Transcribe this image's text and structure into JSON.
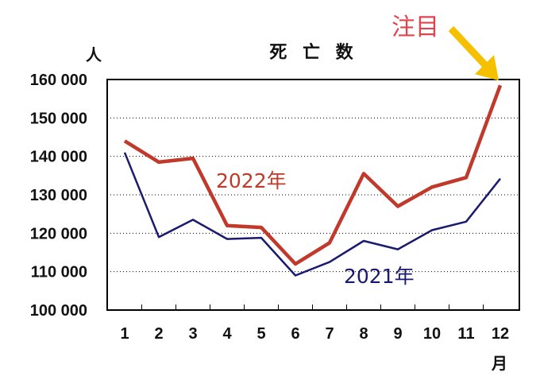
{
  "chart_data": {
    "type": "line",
    "title": "死 亡 数",
    "ylabel": "人",
    "xlabel": "月",
    "categories": [
      "1",
      "2",
      "3",
      "4",
      "5",
      "6",
      "7",
      "8",
      "9",
      "10",
      "11",
      "12"
    ],
    "ylim": [
      100000,
      160000
    ],
    "yticks": [
      100000,
      110000,
      120000,
      130000,
      140000,
      150000,
      160000
    ],
    "ytick_labels": [
      "100 000",
      "110 000",
      "120 000",
      "130 000",
      "140 000",
      "150 000",
      "160 000"
    ],
    "grid": "horizontal",
    "series": [
      {
        "name": "2022年",
        "color": "#c0392b",
        "values": [
          144000,
          138500,
          139500,
          122000,
          121500,
          112000,
          117500,
          135500,
          127000,
          132000,
          134500,
          158500
        ]
      },
      {
        "name": "2021年",
        "color": "#1a1a6e",
        "values": [
          141000,
          119000,
          123500,
          118500,
          118800,
          109000,
          112500,
          118000,
          115800,
          120800,
          123000,
          134200
        ]
      }
    ],
    "annotation": {
      "text": "注目",
      "color": "#e0454f",
      "arrow_color": "#f5c000"
    }
  }
}
